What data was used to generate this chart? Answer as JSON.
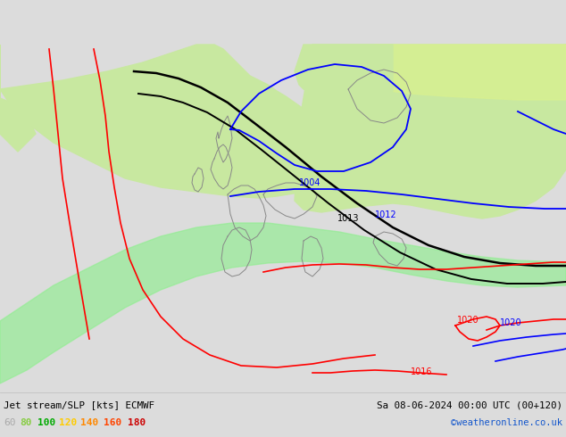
{
  "title_left": "Jet stream/SLP [kts] ECMWF",
  "title_right": "Sa 08-06-2024 00:00 UTC (00+120)",
  "credit": "©weatheronline.co.uk",
  "legend_values": [
    "60",
    "80",
    "100",
    "120",
    "140",
    "160",
    "180"
  ],
  "legend_colors": [
    "#aaaaaa",
    "#88cc44",
    "#00aa00",
    "#ffcc00",
    "#ff8800",
    "#ff4400",
    "#cc0000"
  ],
  "bg_color": "#dcdcdc",
  "land_color": "#c8e8a0",
  "jet_green": "#90ee90",
  "jet_yellow": "#d8f090",
  "figsize": [
    6.34,
    4.9
  ],
  "dpi": 100
}
